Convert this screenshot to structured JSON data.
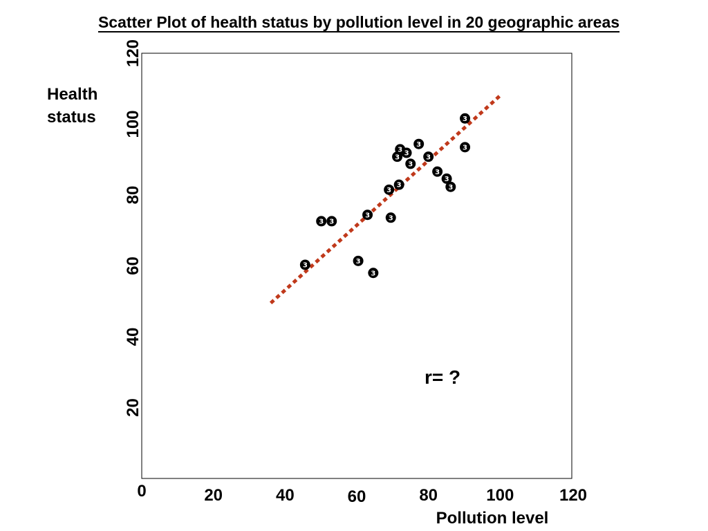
{
  "chart_data": {
    "type": "scatter",
    "title": "Scatter Plot of health status by pollution level in 20 geographic areas",
    "xlabel": "Pollution level",
    "ylabel": [
      "Health",
      "status"
    ],
    "xlim": [
      0,
      120
    ],
    "ylim": [
      0,
      120
    ],
    "x_ticks": [
      {
        "value": 0,
        "label": "0"
      },
      {
        "value": 20,
        "label": "20"
      },
      {
        "value": 40,
        "label": "40"
      },
      {
        "value": 60,
        "label": "60"
      },
      {
        "value": 80,
        "label": "80"
      },
      {
        "value": 100,
        "label": "100"
      },
      {
        "value": 120,
        "label": "120"
      }
    ],
    "y_ticks": [
      {
        "value": 20,
        "label": "20"
      },
      {
        "value": 40,
        "label": "40"
      },
      {
        "value": 60,
        "label": "60"
      },
      {
        "value": 80,
        "label": "80"
      },
      {
        "value": 100,
        "label": "100"
      },
      {
        "value": 120,
        "label": "120"
      }
    ],
    "marker_glyph": "3",
    "points": [
      {
        "x": 45.6,
        "y": 60.3
      },
      {
        "x": 50.1,
        "y": 72.6
      },
      {
        "x": 53.0,
        "y": 72.6
      },
      {
        "x": 60.4,
        "y": 61.4
      },
      {
        "x": 64.6,
        "y": 58.0
      },
      {
        "x": 63.0,
        "y": 74.4
      },
      {
        "x": 69.5,
        "y": 73.6
      },
      {
        "x": 69.0,
        "y": 81.5
      },
      {
        "x": 71.8,
        "y": 82.9
      },
      {
        "x": 71.3,
        "y": 90.8
      },
      {
        "x": 72.1,
        "y": 92.9
      },
      {
        "x": 73.9,
        "y": 91.9
      },
      {
        "x": 75.0,
        "y": 88.8
      },
      {
        "x": 77.3,
        "y": 94.4
      },
      {
        "x": 80.0,
        "y": 90.8
      },
      {
        "x": 82.5,
        "y": 86.6
      },
      {
        "x": 85.1,
        "y": 84.6
      },
      {
        "x": 86.2,
        "y": 82.3
      },
      {
        "x": 90.2,
        "y": 101.6
      },
      {
        "x": 90.2,
        "y": 93.5
      }
    ],
    "trendline": {
      "style": "dotted",
      "color": "#c0391b",
      "x": [
        36,
        100.5
      ],
      "y": [
        49.5,
        108.5
      ]
    },
    "annotation": "r= ?",
    "grid": false,
    "legend": "none"
  }
}
